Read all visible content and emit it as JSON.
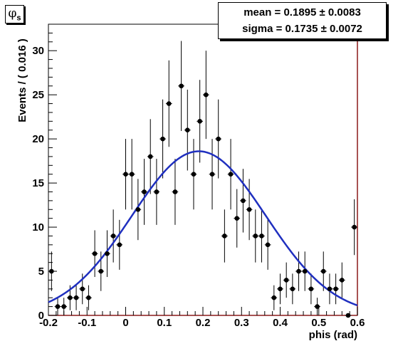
{
  "title": {
    "symbol": "φ",
    "subscript": "s"
  },
  "stats": {
    "mean": "mean = 0.1895 ± 0.0083",
    "sigma": "sigma = 0.1735 ± 0.0072"
  },
  "chart_data": {
    "type": "scatter",
    "xlabel": "phis (rad)",
    "ylabel": "Events / ( 0.016 )",
    "xlim": [
      -0.2,
      0.6
    ],
    "ylim": [
      0,
      33
    ],
    "xticks": [
      "-0.2",
      "-0.1",
      "0",
      "0.1",
      "0.2",
      "0.3",
      "0.4",
      "0.5",
      "0.6"
    ],
    "yticks": [
      "0",
      "5",
      "10",
      "15",
      "20",
      "25",
      "30"
    ],
    "bin_width": 0.016,
    "series": [
      {
        "type": "points_with_errors",
        "x": [
          -0.192,
          -0.176,
          -0.16,
          -0.144,
          -0.128,
          -0.112,
          -0.096,
          -0.08,
          -0.064,
          -0.048,
          -0.032,
          -0.016,
          0.0,
          0.016,
          0.032,
          0.048,
          0.064,
          0.08,
          0.096,
          0.112,
          0.128,
          0.144,
          0.16,
          0.176,
          0.192,
          0.208,
          0.224,
          0.24,
          0.256,
          0.272,
          0.288,
          0.304,
          0.32,
          0.336,
          0.352,
          0.368,
          0.384,
          0.4,
          0.416,
          0.432,
          0.448,
          0.464,
          0.48,
          0.496,
          0.512,
          0.528,
          0.544,
          0.56,
          0.576,
          0.592
        ],
        "y": [
          5,
          1,
          1,
          2,
          2,
          3,
          2,
          7,
          5,
          7,
          9,
          8,
          16,
          16,
          12,
          14,
          18,
          14,
          20,
          24,
          14,
          26,
          21,
          16,
          22,
          25,
          16,
          20,
          9,
          16,
          11,
          13,
          12,
          9,
          9,
          8,
          2,
          3,
          4,
          3,
          5,
          5,
          3,
          1,
          5,
          3,
          3,
          4,
          0,
          10
        ]
      },
      {
        "type": "gaussian_fit",
        "mean": 0.1895,
        "sigma": 0.1735,
        "amplitude": 18.6,
        "color": "#1f2fbf"
      }
    ]
  }
}
